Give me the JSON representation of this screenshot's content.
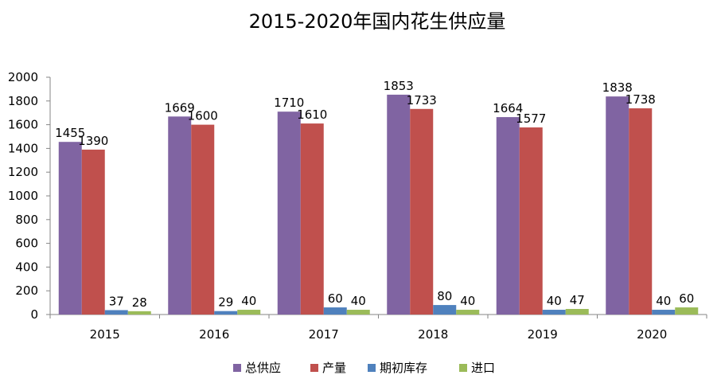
{
  "chart_data": {
    "type": "bar",
    "title": "2015-2020年国内花生供应量",
    "categories": [
      "2015",
      "2016",
      "2017",
      "2018",
      "2019",
      "2020"
    ],
    "series": [
      {
        "name": "总供应",
        "color": "#8064A2",
        "values": [
          1455,
          1669,
          1710,
          1853,
          1664,
          1838
        ]
      },
      {
        "name": "产量",
        "color": "#C0504D",
        "values": [
          1390,
          1600,
          1610,
          1733,
          1577,
          1738
        ]
      },
      {
        "name": "期初库存",
        "color": "#4F81BD",
        "values": [
          37,
          29,
          60,
          80,
          40,
          40
        ]
      },
      {
        "name": "进口",
        "color": "#9BBB59",
        "values": [
          28,
          40,
          40,
          40,
          47,
          60
        ]
      }
    ],
    "ylim": [
      0,
      2000
    ],
    "yticks": [
      0,
      200,
      400,
      600,
      800,
      1000,
      1200,
      1400,
      1600,
      1800,
      2000
    ],
    "legend_position": "bottom",
    "grid": false
  }
}
